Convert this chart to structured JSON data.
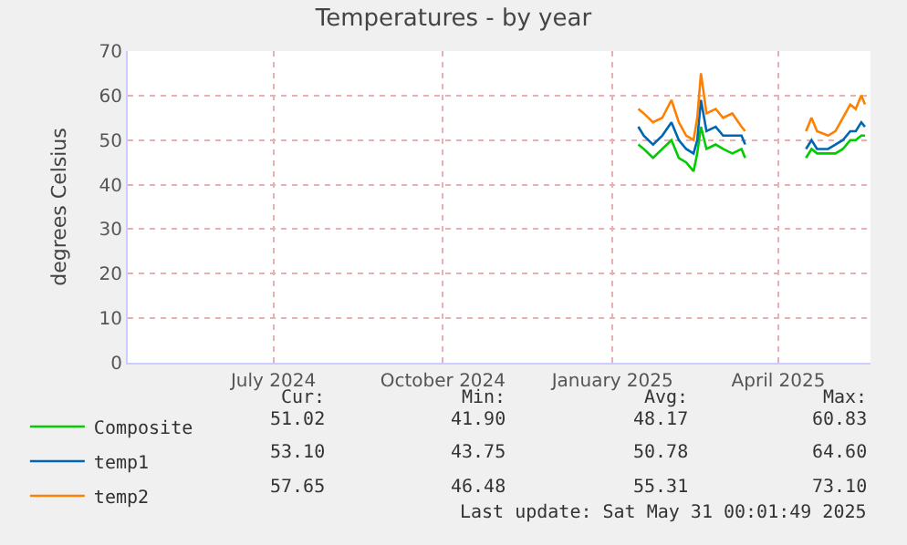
{
  "chart_data": {
    "type": "line",
    "title": "Temperatures - by year",
    "ylabel": "degrees Celsius",
    "x": [
      "2025-01-15",
      "2025-01-18",
      "2025-01-23",
      "2025-01-28",
      "2025-02-02",
      "2025-02-06",
      "2025-02-10",
      "2025-02-14",
      "2025-02-16",
      "2025-02-18",
      "2025-02-21",
      "2025-02-26",
      "2025-03-02",
      "2025-03-07",
      "2025-03-12",
      "2025-03-14",
      "2025-03-30",
      "2025-04-16",
      "2025-04-19",
      "2025-04-22",
      "2025-04-28",
      "2025-05-02",
      "2025-05-06",
      "2025-05-10",
      "2025-05-13",
      "2025-05-16",
      "2025-05-18"
    ],
    "series": [
      {
        "name": "Composite",
        "color": "#00cc00",
        "values": [
          49,
          48,
          46,
          48,
          50,
          46,
          45,
          43,
          47,
          53,
          48,
          49,
          48,
          47,
          48,
          46,
          null,
          46,
          48,
          47,
          47,
          47,
          48,
          50,
          50,
          51,
          51
        ]
      },
      {
        "name": "temp1",
        "color": "#0066b3",
        "values": [
          53,
          51,
          49,
          51,
          54,
          50,
          48,
          47,
          50,
          59,
          52,
          53,
          51,
          51,
          51,
          49,
          null,
          48,
          50,
          48,
          48,
          49,
          50,
          52,
          52,
          54,
          53
        ]
      },
      {
        "name": "temp2",
        "color": "#ff8000",
        "values": [
          57,
          56,
          54,
          55,
          59,
          54,
          51,
          50,
          55,
          65,
          56,
          57,
          55,
          56,
          53,
          52,
          null,
          52,
          55,
          52,
          51,
          52,
          55,
          58,
          57,
          60,
          58
        ]
      }
    ],
    "xlim": [
      "2024-04-13",
      "2025-05-21"
    ],
    "xticks": [
      {
        "value": "2024-07-01",
        "label": "July 2024"
      },
      {
        "value": "2024-10-01",
        "label": "October 2024"
      },
      {
        "value": "2025-01-01",
        "label": "January 2025"
      },
      {
        "value": "2025-04-01",
        "label": "April 2025"
      }
    ],
    "ylim": [
      0,
      70
    ],
    "yticks": [
      0,
      10,
      20,
      30,
      40,
      50,
      60,
      70
    ],
    "grid": true,
    "legend": "bottom left",
    "marker": "none",
    "line_style": "solid",
    "annotations": [
      "Cur:",
      "Min:",
      "Avg:",
      "Max:",
      "51.02",
      "41.90",
      "48.17",
      "60.83",
      "53.10",
      "43.75",
      "50.78",
      "64.60",
      "57.65",
      "46.48",
      "55.31",
      "73.10",
      "Last update: Sat May 31 00:01:49 2025"
    ]
  }
}
